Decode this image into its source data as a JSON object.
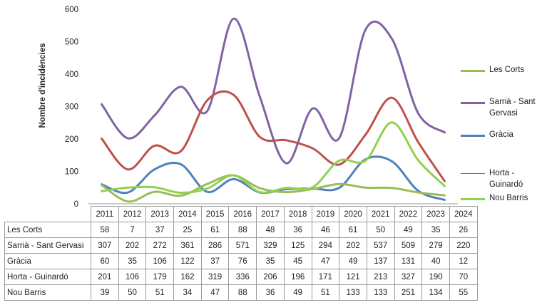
{
  "chart_data": {
    "type": "line",
    "ylabel": "Nombre d'incidències",
    "ylim": [
      0,
      600
    ],
    "yticks": [
      0,
      100,
      200,
      300,
      400,
      500,
      600
    ],
    "grid": false,
    "legend_position": "right",
    "categories": [
      "2011",
      "2012",
      "2013",
      "2014",
      "2015",
      "2016",
      "2017",
      "2018",
      "2019",
      "2020",
      "2021",
      "2022",
      "2023",
      "2024"
    ],
    "series": [
      {
        "name": "Les Corts",
        "color": "#9bbb59",
        "values": [
          58,
          7,
          37,
          25,
          61,
          88,
          48,
          36,
          46,
          61,
          50,
          49,
          35,
          26
        ]
      },
      {
        "name": "Sarrià - Sant Gervasi",
        "color": "#8064a2",
        "values": [
          307,
          202,
          272,
          361,
          286,
          571,
          329,
          125,
          294,
          202,
          537,
          509,
          279,
          220
        ]
      },
      {
        "name": "Gràcia",
        "color": "#4f81bd",
        "values": [
          60,
          35,
          106,
          122,
          37,
          76,
          35,
          45,
          47,
          49,
          137,
          131,
          40,
          12
        ]
      },
      {
        "name": "Horta - Guinardó",
        "color": "#c0504d",
        "values": [
          201,
          106,
          179,
          162,
          319,
          336,
          206,
          196,
          171,
          121,
          213,
          327,
          190,
          70
        ]
      },
      {
        "name": "Nou Barris",
        "color": "#92d050",
        "values": [
          39,
          50,
          51,
          34,
          47,
          88,
          36,
          49,
          51,
          133,
          133,
          251,
          134,
          55
        ]
      }
    ]
  }
}
